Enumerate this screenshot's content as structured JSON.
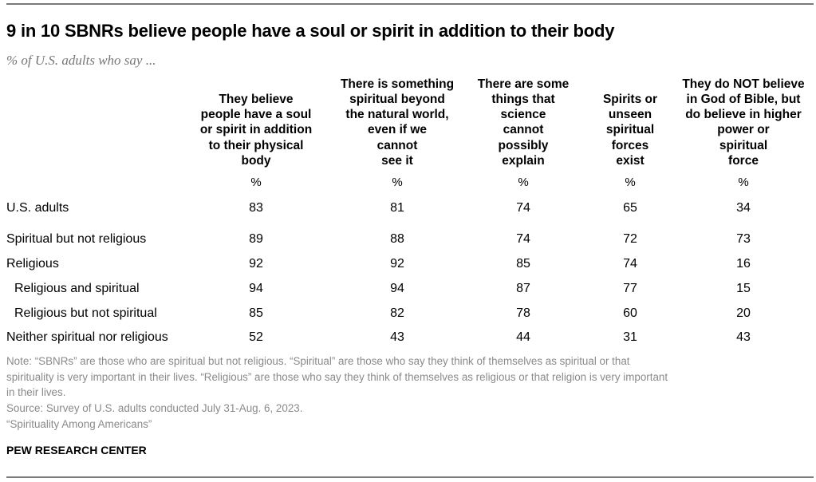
{
  "chart_data": {
    "type": "table",
    "title": "9 in 10 SBNRs believe people have a soul or spirit in addition to their body",
    "subtitle": "% of U.S. adults who say ...",
    "columns": [
      "They believe\npeople have a soul\nor spirit in addition\nto their physical\nbody",
      "There is something\nspiritual beyond\nthe natural world,\neven if we\ncannot\nsee it",
      "There are some\nthings that\nscience\ncannot\npossibly\nexplain",
      "Spirits or\nunseen\nspiritual\nforces\nexist",
      "They do NOT believe\nin God of Bible, but\ndo believe in higher\npower or\nspiritual\nforce"
    ],
    "unit_label": "%",
    "rows": [
      {
        "label": "U.S. adults",
        "indent": false,
        "values": [
          83,
          81,
          74,
          65,
          34
        ]
      },
      {
        "label": "Spiritual but not religious",
        "indent": false,
        "values": [
          89,
          88,
          74,
          72,
          73
        ]
      },
      {
        "label": "Religious",
        "indent": false,
        "values": [
          92,
          92,
          85,
          74,
          16
        ]
      },
      {
        "label": "Religious and spiritual",
        "indent": true,
        "values": [
          94,
          94,
          87,
          77,
          15
        ]
      },
      {
        "label": "Religious but not spiritual",
        "indent": true,
        "values": [
          85,
          82,
          78,
          60,
          20
        ]
      },
      {
        "label": "Neither spiritual nor religious",
        "indent": false,
        "values": [
          52,
          43,
          44,
          31,
          43
        ]
      }
    ]
  },
  "notes": [
    "Note: “SBNRs” are those who are spiritual but not religious. “Spiritual” are those who say they think of themselves as spiritual or that",
    "spirituality is very important in their lives. “Religious” are those who say they think of themselves as religious or that religion is very important",
    "in their lives.",
    "Source: Survey of U.S. adults conducted July 31-Aug. 6, 2023.",
    "“Spirituality Among Americans”"
  ],
  "brand": "PEW RESEARCH CENTER"
}
